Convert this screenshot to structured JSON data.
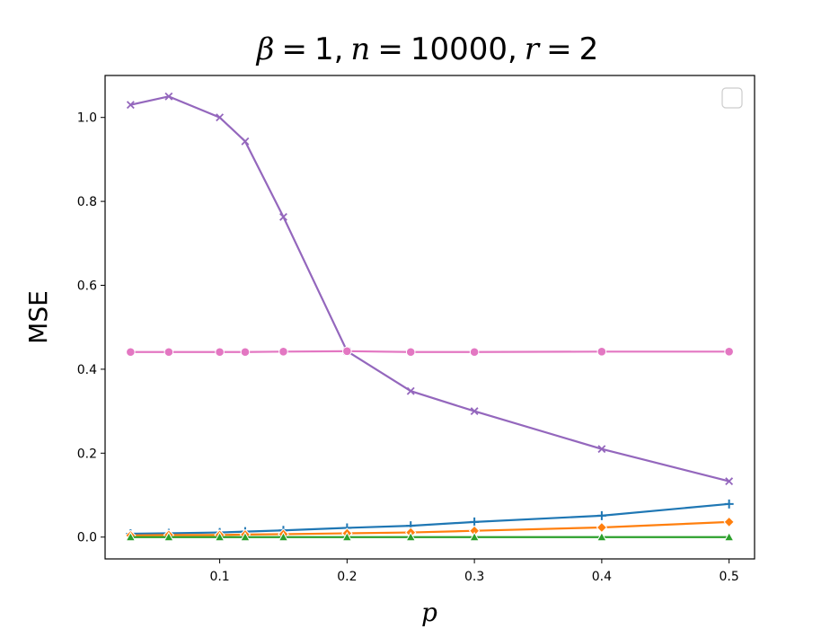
{
  "chart_data": {
    "type": "line",
    "title": {
      "beta_sym": "β",
      "beta_val": "1",
      "n_sym": "n",
      "n_val": "10000",
      "r_sym": "r",
      "r_val": "2"
    },
    "xlabel": "p",
    "ylabel": "MSE",
    "xlim": [
      0.01,
      0.52
    ],
    "ylim": [
      -0.052,
      1.1
    ],
    "xticks": [
      0.1,
      0.2,
      0.3,
      0.4,
      0.5
    ],
    "xtick_labels": [
      "0.1",
      "0.2",
      "0.3",
      "0.4",
      "0.5"
    ],
    "yticks": [
      0.0,
      0.2,
      0.4,
      0.6,
      0.8,
      1.0
    ],
    "ytick_labels": [
      "0.0",
      "0.2",
      "0.4",
      "0.6",
      "0.8",
      "1.0"
    ],
    "legend": {
      "placement": "top-right",
      "entries": []
    },
    "grid": false,
    "x": [
      0.03,
      0.06,
      0.1,
      0.12,
      0.15,
      0.2,
      0.25,
      0.3,
      0.4,
      0.5
    ],
    "series": [
      {
        "values": [
          0.008,
          0.009,
          0.011,
          0.013,
          0.016,
          0.022,
          0.027,
          0.036,
          0.051,
          0.079
        ],
        "color": "#1f77b4",
        "marker": "plus"
      },
      {
        "values": [
          0.004,
          0.005,
          0.005,
          0.006,
          0.007,
          0.009,
          0.011,
          0.015,
          0.023,
          0.036
        ],
        "color": "#ff7f0e",
        "marker": "diamond"
      },
      {
        "values": [
          0.0,
          0.0,
          0.0,
          0.0,
          0.0,
          0.0,
          0.0,
          0.0,
          0.0,
          0.0
        ],
        "color": "#2ca02c",
        "marker": "triangle"
      },
      {
        "values": [
          1.03,
          1.05,
          1.0,
          0.943,
          0.763,
          0.443,
          0.348,
          0.3,
          0.21,
          0.133
        ],
        "color": "#9467bd",
        "marker": "x"
      },
      {
        "values": [
          0.441,
          0.441,
          0.441,
          0.441,
          0.442,
          0.443,
          0.441,
          0.441,
          0.442,
          0.442
        ],
        "color": "#e377c2",
        "marker": "circle"
      }
    ]
  }
}
